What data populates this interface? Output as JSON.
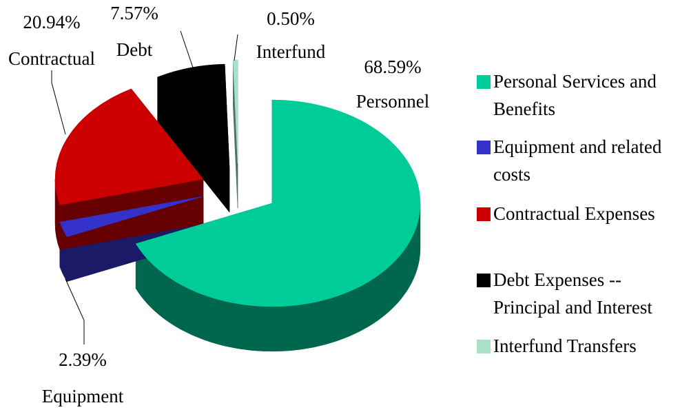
{
  "chart_data": {
    "type": "pie",
    "categories": [
      "Personal Services and Benefits",
      "Equipment and related costs",
      "Contractual Expenses",
      "Debt Expenses -- Principal and Interest",
      "Interfund Transfers"
    ],
    "labels": [
      "Personnel",
      "Equipment",
      "Contractual",
      "Debt",
      "Interfund"
    ],
    "values": [
      68.59,
      2.39,
      20.94,
      7.57,
      0.5
    ],
    "value_labels": [
      "68.59%",
      "2.39%",
      "20.94%",
      "7.57%",
      "0.50%"
    ],
    "colors": [
      "#00cc99",
      "#3333cc",
      "#cc0000",
      "#000000",
      "#a8e0c8"
    ],
    "legend": "right"
  }
}
